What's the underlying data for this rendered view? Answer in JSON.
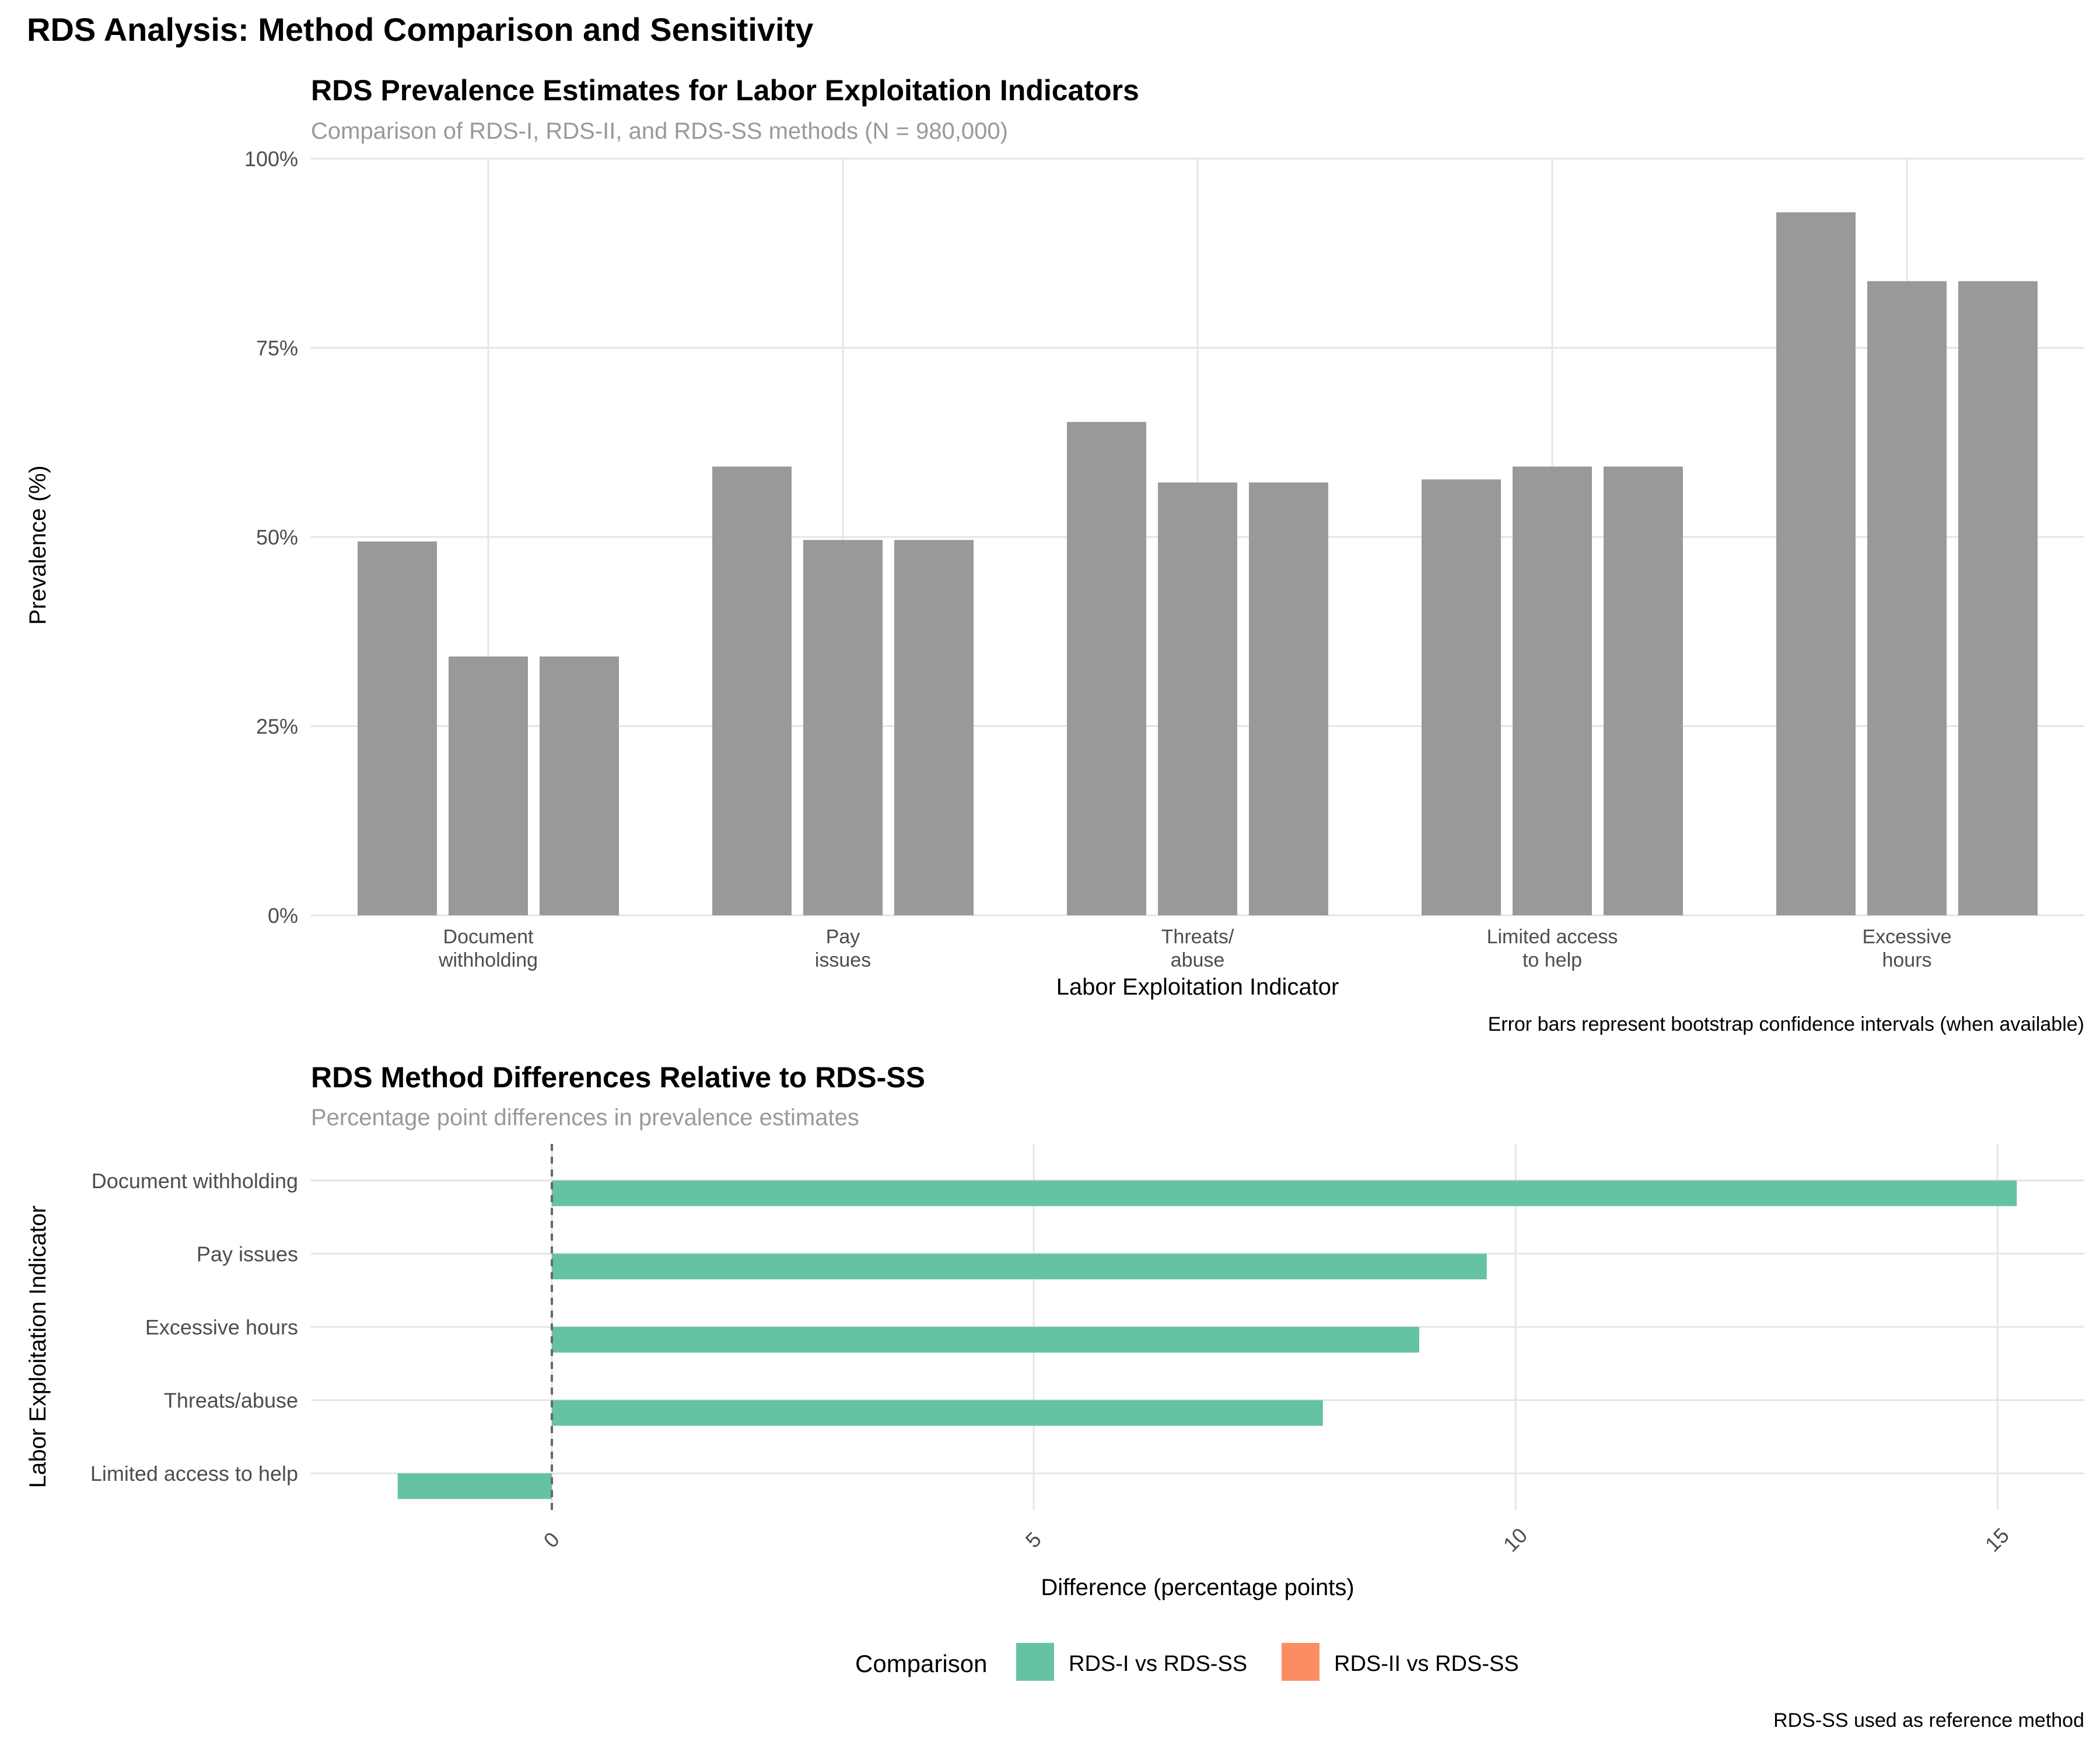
{
  "figure_title": "RDS Analysis: Method Comparison and Sensitivity",
  "colors": {
    "bar_gray": "#999999",
    "rds1_vs_ss": "#66c2a5",
    "rds2_vs_ss": "#fc8d62",
    "grid": "#e5e5e5",
    "subtitle": "#999999",
    "tick": "#4d4d4d"
  },
  "legend": {
    "title": "Comparison",
    "items": [
      {
        "label": "RDS-I vs RDS-SS",
        "color": "#66c2a5"
      },
      {
        "label": "RDS-II vs RDS-SS",
        "color": "#fc8d62"
      }
    ]
  },
  "chart_data": [
    {
      "type": "bar",
      "title": "RDS Prevalence Estimates for Labor Exploitation Indicators",
      "subtitle": "Comparison of RDS-I, RDS-II, and RDS-SS methods (N = 980,000)",
      "xlabel": "Labor Exploitation Indicator",
      "ylabel": "Prevalence (%)",
      "caption": "Error bars represent bootstrap confidence intervals (when available)",
      "categories": [
        [
          "Document",
          "withholding"
        ],
        [
          "Pay",
          "issues"
        ],
        [
          "Threats/",
          "abuse"
        ],
        [
          "Limited access",
          "to help"
        ],
        [
          "Excessive",
          "hours"
        ]
      ],
      "series_count": 3,
      "values": [
        [
          49.4,
          34.2,
          34.2
        ],
        [
          59.3,
          49.6,
          49.6
        ],
        [
          65.2,
          57.2,
          57.2
        ],
        [
          57.6,
          59.3,
          59.3
        ],
        [
          92.9,
          83.8,
          83.8
        ]
      ],
      "ylim": [
        0,
        100
      ],
      "yticks": [
        0,
        25,
        50,
        75,
        100
      ],
      "ytick_labels": [
        "0%",
        "25%",
        "50%",
        "75%",
        "100%"
      ],
      "grid": true
    },
    {
      "type": "bar",
      "orientation": "horizontal",
      "title": "RDS Method Differences Relative to RDS-SS",
      "subtitle": "Percentage point differences in prevalence estimates",
      "xlabel": "Difference (percentage points)",
      "ylabel": "Labor Exploitation Indicator",
      "caption": "RDS-SS used as reference method",
      "categories": [
        "Document withholding",
        "Pay issues",
        "Excessive hours",
        "Threats/abuse",
        "Limited access to help"
      ],
      "series": [
        {
          "name": "RDS-I vs RDS-SS",
          "values": [
            15.2,
            9.7,
            9.0,
            8.0,
            -1.6
          ]
        },
        {
          "name": "RDS-II vs RDS-SS",
          "values": [
            0,
            0,
            0,
            0,
            0
          ]
        }
      ],
      "xlim": [
        -2.5,
        15.9
      ],
      "xticks": [
        0,
        5,
        10,
        15
      ],
      "xtick_labels": [
        "0",
        "5",
        "10",
        "15"
      ],
      "reference_line": 0,
      "grid": true
    }
  ]
}
